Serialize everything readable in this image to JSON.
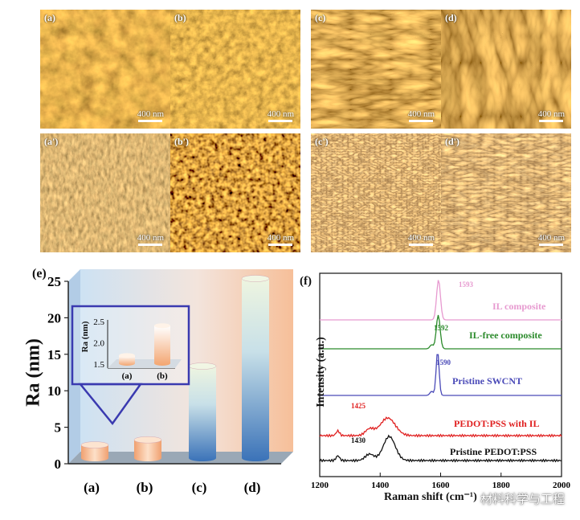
{
  "afm_panels": [
    {
      "label": "(a)",
      "scale": "400 nm"
    },
    {
      "label": "(b)",
      "scale": "400 nm"
    },
    {
      "label": "(c)",
      "scale": "400 nm"
    },
    {
      "label": "(d)",
      "scale": "400 nm"
    },
    {
      "label": "(a')",
      "scale": "400 nm"
    },
    {
      "label": "(b')",
      "scale": "400 nm"
    },
    {
      "label": "(c')",
      "scale": "400 nm"
    },
    {
      "label": "(d')",
      "scale": "400 nm"
    }
  ],
  "chart_data": [
    {
      "type": "bar",
      "panel_label": "(e)",
      "ylabel": "Ra (nm)",
      "categories": [
        "(a)",
        "(b)",
        "(c)",
        "(d)"
      ],
      "values": [
        1.7,
        2.4,
        12.5,
        24.5
      ],
      "ylim": [
        0,
        25
      ],
      "yticks": [
        0,
        5,
        10,
        15,
        20,
        25
      ],
      "inset": {
        "ylabel": "Ra (nm)",
        "categories": [
          "(a)",
          "(b)"
        ],
        "values": [
          1.7,
          2.4
        ],
        "ylim": [
          1.5,
          2.5
        ],
        "yticks": [
          "1.5",
          "2.0",
          "2.5"
        ]
      }
    },
    {
      "type": "line",
      "panel_label": "(f)",
      "xlabel": "Raman shift (cm⁻¹)",
      "ylabel": "Intensity (a.u.)",
      "xlim": [
        1200,
        2000
      ],
      "xticks": [
        1200,
        1400,
        1600,
        1800,
        2000
      ],
      "series": [
        {
          "name": "IL composite",
          "color": "#e79ad0",
          "peak_label": "1593",
          "peak": 1593
        },
        {
          "name": "IL-free composite",
          "color": "#2a8a2a",
          "peak_label": "1592",
          "peak": 1592
        },
        {
          "name": "Pristine SWCNT",
          "color": "#4a4ab8",
          "peak_label": "1590",
          "peak": 1590
        },
        {
          "name": "PEDOT:PSS with IL",
          "color": "#e02020",
          "peak_label": "1425",
          "peak": 1425
        },
        {
          "name": "Pristine PEDOT:PSS",
          "color": "#111111",
          "peak_label": "1430",
          "peak": 1430
        }
      ]
    }
  ],
  "watermark": "材料科学与工程"
}
